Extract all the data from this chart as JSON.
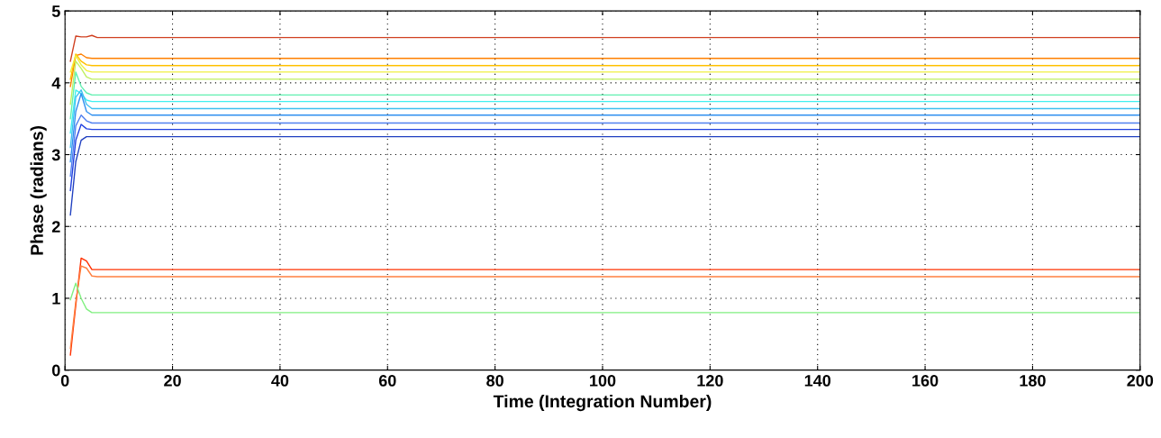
{
  "chart_data": {
    "type": "line",
    "xlabel": "Time (Integration Number)",
    "ylabel": "Phase (radians)",
    "x": [
      1,
      2,
      3,
      4,
      5,
      6,
      200
    ],
    "xlim": [
      0,
      200
    ],
    "xticks": [
      0,
      20,
      40,
      60,
      80,
      100,
      120,
      140,
      160,
      180,
      200
    ],
    "ylim": [
      0,
      5
    ],
    "yticks": [
      0,
      1,
      2,
      3,
      4,
      5
    ],
    "grid": true,
    "line_style": "solid",
    "marker": "none",
    "series": [
      {
        "color": "#d04020",
        "values": [
          4.3,
          4.65,
          4.64,
          4.64,
          4.66,
          4.63,
          4.63
        ]
      },
      {
        "color": "#ff8000",
        "values": [
          3.95,
          4.38,
          4.4,
          4.35,
          4.34,
          4.34,
          4.34
        ]
      },
      {
        "color": "#ffc000",
        "values": [
          4.05,
          4.4,
          4.3,
          4.25,
          4.24,
          4.24,
          4.24
        ]
      },
      {
        "color": "#f0f040",
        "values": [
          4.15,
          4.38,
          4.25,
          4.17,
          4.15,
          4.15,
          4.15
        ]
      },
      {
        "color": "#c0f060",
        "values": [
          3.7,
          4.3,
          4.2,
          4.08,
          4.05,
          4.05,
          4.05
        ]
      },
      {
        "color": "#60f0b0",
        "values": [
          3.5,
          4.15,
          3.95,
          3.86,
          3.83,
          3.83,
          3.83
        ]
      },
      {
        "color": "#40f0f0",
        "values": [
          3.3,
          3.9,
          3.85,
          3.76,
          3.74,
          3.74,
          3.74
        ]
      },
      {
        "color": "#40c0f0",
        "values": [
          3.1,
          3.8,
          3.9,
          3.7,
          3.64,
          3.64,
          3.64
        ]
      },
      {
        "color": "#3090f0",
        "values": [
          2.9,
          3.6,
          3.85,
          3.6,
          3.55,
          3.55,
          3.55
        ]
      },
      {
        "color": "#5080f0",
        "values": [
          2.7,
          3.4,
          3.55,
          3.47,
          3.44,
          3.44,
          3.44
        ]
      },
      {
        "color": "#2040e0",
        "values": [
          2.5,
          3.2,
          3.42,
          3.36,
          3.35,
          3.35,
          3.35
        ]
      },
      {
        "color": "#2040c0",
        "values": [
          2.16,
          2.9,
          3.2,
          3.25,
          3.25,
          3.25,
          3.25
        ]
      },
      {
        "color": "#ff3000",
        "values": [
          0.21,
          0.9,
          1.56,
          1.52,
          1.4,
          1.4,
          1.4
        ]
      },
      {
        "color": "#ff8040",
        "values": [
          0.3,
          0.95,
          1.45,
          1.42,
          1.31,
          1.3,
          1.3
        ]
      },
      {
        "color": "#80f080",
        "values": [
          0.98,
          1.21,
          1.0,
          0.85,
          0.8,
          0.8,
          0.8
        ]
      }
    ]
  }
}
